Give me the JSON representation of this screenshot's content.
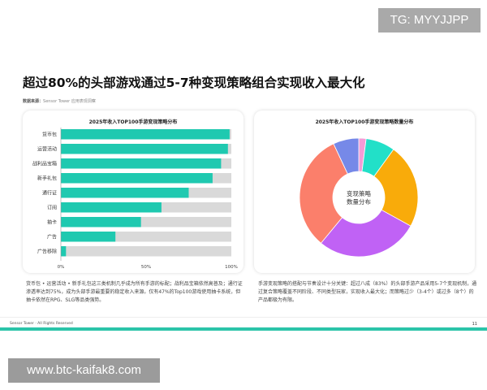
{
  "watermark_top": "TG: MYYJJPP",
  "watermark_bottom": "www.btc-kaifak8.com",
  "title": "超过80%的头部游戏通过5-7种变现策略组合实现收入最大化",
  "source_label": "数据来源：",
  "source_value": "Sensor Tower 应用表现洞察",
  "colors": {
    "bar": "#1fc9b0",
    "track": "#d9d9d9",
    "footer_line": "#2bc4a9"
  },
  "chart_data": [
    {
      "type": "bar",
      "orientation": "horizontal",
      "title": "2025年收入TOP100手游变现策略分布",
      "categories": [
        "货币包",
        "运营活动",
        "战利品宝箱",
        "新手礼包",
        "通行证",
        "订阅",
        "抽卡",
        "广告",
        "广告移除"
      ],
      "values": [
        99,
        98,
        94,
        89,
        75,
        59,
        47,
        32,
        3
      ],
      "xlim": [
        0,
        100
      ],
      "xticks": [
        "0%",
        "50%",
        "100%"
      ]
    },
    {
      "type": "pie",
      "donut": true,
      "title": "2025年收入TOP100手游变现策略数量分布",
      "center_label": [
        "变现策略",
        "数量分布"
      ],
      "values": [
        2,
        8,
        23,
        28,
        32,
        7
      ],
      "colors": [
        "#f59bd6",
        "#22e0c8",
        "#f9ab0a",
        "#c062f5",
        "#fb7f6b",
        "#7689e8"
      ]
    }
  ],
  "paragraphs": [
    "货币包 • 运营活动 • 新手礼包这三类机制几乎成为所有手游的标配；战利品宝箱依然高普及；通行证渗透率达到75%，成为头部手游最重要的稳定收入来源。仅有47%的Top100游戏使用抽卡系统，但抽卡依然在RPG、SLG等品类强势。",
    "手游变现策略的搭配与节奏设计十分关键：超过八成（83%）的头部手游产品采用5-7个变现机制，通过复合策略覆盖不同阶段、不同类型玩家，实现收入最大化；而策略过少（3-4个）或过多（8个）的产品都极为有限。"
  ],
  "footer": "Sensor Tower · All Rights Reserved",
  "page_number": "11"
}
